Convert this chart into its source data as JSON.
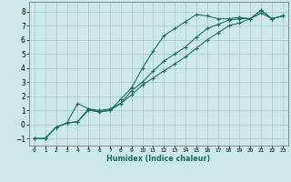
{
  "xlabel": "Humidex (Indice chaleur)",
  "bg_color": "#cce8e8",
  "grid_color": "#b0cccc",
  "line_color": "#1a6b5a",
  "xlim": [
    -0.5,
    23.5
  ],
  "ylim": [
    -1.5,
    8.7
  ],
  "xticks": [
    0,
    1,
    2,
    3,
    4,
    5,
    6,
    7,
    8,
    9,
    10,
    11,
    12,
    13,
    14,
    15,
    16,
    17,
    18,
    19,
    20,
    21,
    22,
    23
  ],
  "yticks": [
    -1,
    0,
    1,
    2,
    3,
    4,
    5,
    6,
    7,
    8
  ],
  "lines": [
    {
      "x": [
        0,
        1,
        2,
        3,
        4,
        5,
        6,
        7,
        8,
        9,
        10,
        11,
        12,
        13,
        14,
        15,
        16,
        17,
        18,
        19,
        20,
        21,
        22,
        23
      ],
      "y": [
        -1,
        -1,
        -0.2,
        0.1,
        0.2,
        1.1,
        0.9,
        1.0,
        1.8,
        2.6,
        4.0,
        5.2,
        6.3,
        6.8,
        7.3,
        7.8,
        7.7,
        7.5,
        7.5,
        7.6,
        7.5,
        8.1,
        7.5,
        7.7
      ]
    },
    {
      "x": [
        0,
        1,
        2,
        3,
        4,
        5,
        6,
        7,
        8,
        9,
        10,
        11,
        12,
        13,
        14,
        15,
        16,
        17,
        18,
        19,
        20,
        21,
        22,
        23
      ],
      "y": [
        -1,
        -1,
        -0.2,
        0.1,
        1.5,
        1.1,
        1.0,
        1.1,
        1.5,
        2.4,
        3.0,
        3.8,
        4.5,
        5.0,
        5.5,
        6.2,
        6.8,
        7.1,
        7.4,
        7.5,
        7.5,
        8.1,
        7.5,
        7.7
      ]
    },
    {
      "x": [
        0,
        1,
        2,
        3,
        4,
        5,
        6,
        7,
        8,
        9,
        10,
        11,
        12,
        13,
        14,
        15,
        16,
        17,
        18,
        19,
        20,
        21,
        22,
        23
      ],
      "y": [
        -1,
        -1,
        -0.2,
        0.1,
        0.2,
        1.0,
        0.9,
        1.0,
        1.5,
        2.1,
        2.8,
        3.3,
        3.8,
        4.3,
        4.8,
        5.4,
        6.0,
        6.5,
        7.0,
        7.2,
        7.5,
        7.9,
        7.5,
        7.7
      ]
    }
  ]
}
